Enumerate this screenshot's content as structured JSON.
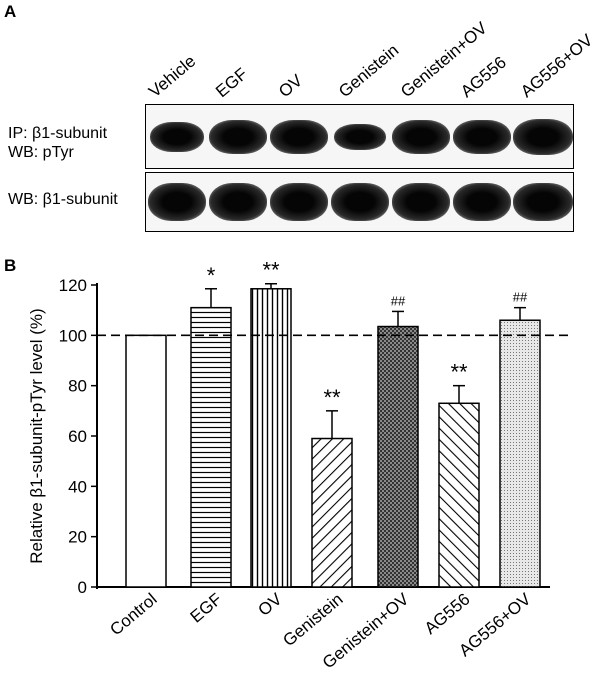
{
  "panel_a": {
    "letter": "A",
    "lanes": [
      "Vehicle",
      "EGF",
      "OV",
      "Genistein",
      "Genistein+OV",
      "AG556",
      "AG556+OV"
    ],
    "blot1_label_line1": "IP: β1-subunit",
    "blot1_label_line2": "WB: pTyr",
    "blot2_label": "WB: β1-subunit"
  },
  "panel_b": {
    "letter": "B"
  },
  "chart_data": {
    "type": "bar",
    "categories": [
      "Control",
      "EGF",
      "OV",
      "Genistein",
      "Genistein+OV",
      "AG556",
      "AG556+OV"
    ],
    "values": [
      100,
      111,
      118.5,
      59,
      103.5,
      73,
      106
    ],
    "errors": [
      0,
      7.5,
      2,
      11,
      6,
      7,
      5
    ],
    "annotations": [
      "",
      "*",
      "**",
      "**",
      "##",
      "**",
      "##"
    ],
    "patterns": [
      "none",
      "horizontal",
      "vertical",
      "diagonal-up",
      "crosshatch-dark",
      "diagonal-down",
      "dots"
    ],
    "xlabel": "",
    "ylabel": "Relative β1-subunit-pTyr level (%)",
    "ylim": [
      0,
      120
    ],
    "yticks": [
      0,
      20,
      40,
      60,
      80,
      100,
      120
    ],
    "reference_line": 100
  }
}
